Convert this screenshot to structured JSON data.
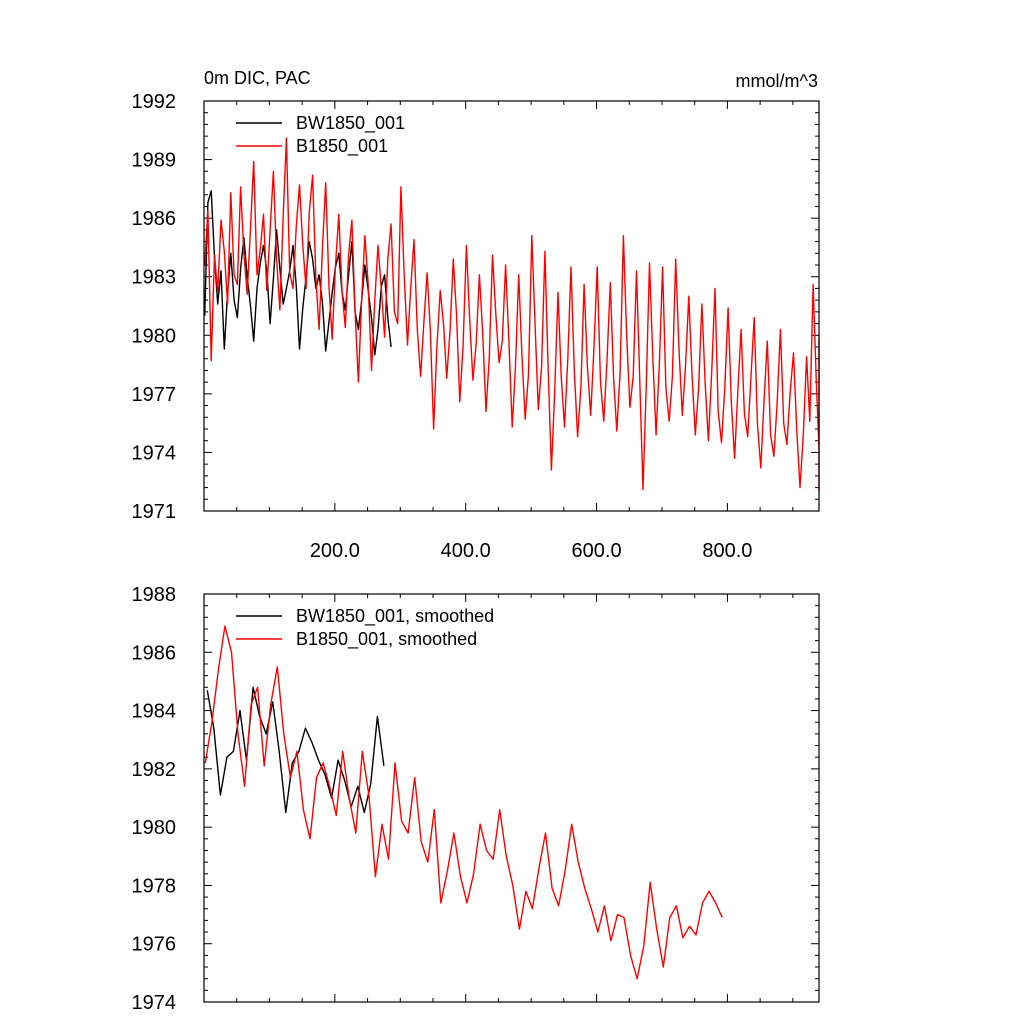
{
  "chart_data": [
    {
      "type": "line",
      "title": "0m DIC, PAC",
      "units": "mmol/m^3",
      "xlim": [
        0,
        940
      ],
      "ylim": [
        1971,
        1992
      ],
      "xticks": [
        200,
        400,
        600,
        800
      ],
      "xtick_labels": [
        "200.0",
        "400.0",
        "600.0",
        "800.0"
      ],
      "yticks": [
        1971,
        1974,
        1977,
        1980,
        1983,
        1986,
        1989,
        1992
      ],
      "ytick_labels": [
        "1971",
        "1974",
        "1977",
        "1980",
        "1983",
        "1986",
        "1989",
        "1992"
      ],
      "legend_position": "top-left",
      "series": [
        {
          "name": "BW1850_001",
          "color": "#000000",
          "x_start": 1,
          "x_step": 5,
          "values": [
            1981.0,
            1986.8,
            1987.4,
            1984.0,
            1981.6,
            1983.3,
            1979.3,
            1982.2,
            1984.2,
            1981.8,
            1980.9,
            1983.4,
            1985.0,
            1983.0,
            1981.5,
            1979.7,
            1982.4,
            1983.7,
            1984.6,
            1983.3,
            1980.6,
            1982.9,
            1985.4,
            1983.4,
            1981.6,
            1982.4,
            1983.3,
            1984.6,
            1982.5,
            1979.3,
            1981.4,
            1983.0,
            1984.8,
            1983.9,
            1982.4,
            1983.1,
            1981.7,
            1979.2,
            1980.7,
            1982.2,
            1983.5,
            1984.2,
            1982.2,
            1981.3,
            1983.1,
            1984.8,
            1981.2,
            1980.3,
            1981.8,
            1983.6,
            1982.3,
            1980.9,
            1979.0,
            1980.3,
            1982.5,
            1983.1,
            1980.9,
            1979.4
          ]
        },
        {
          "name": "B1850_001",
          "color": "#ff0000",
          "x_start": 1,
          "x_step": 5,
          "values": [
            1983.6,
            1986.4,
            1978.7,
            1984.1,
            1982.2,
            1985.9,
            1984.3,
            1981.6,
            1987.3,
            1983.1,
            1982.6,
            1987.6,
            1984.2,
            1982.1,
            1985.5,
            1988.9,
            1983.1,
            1984.4,
            1986.2,
            1982.3,
            1985.4,
            1988.4,
            1983.9,
            1981.3,
            1986.1,
            1990.1,
            1983.2,
            1982.4,
            1985.6,
            1987.7,
            1984.6,
            1982.4,
            1986.3,
            1988.2,
            1982.9,
            1980.3,
            1984.4,
            1987.8,
            1982.5,
            1979.8,
            1983.6,
            1986.2,
            1982.3,
            1980.4,
            1984.1,
            1985.9,
            1981.2,
            1977.6,
            1981.9,
            1985.1,
            1982.6,
            1978.2,
            1981.8,
            1984.6,
            1982.4,
            1979.9,
            1983.9,
            1985.7,
            1981.2,
            1980.6,
            1987.6,
            1983.1,
            1979.5,
            1982.4,
            1984.9,
            1980.3,
            1977.9,
            1980.6,
            1983.2,
            1980.2,
            1975.2,
            1979.4,
            1982.3,
            1980.6,
            1977.8,
            1980.2,
            1983.9,
            1981.1,
            1976.6,
            1979.5,
            1984.6,
            1980.9,
            1977.7,
            1979.6,
            1983.1,
            1980.1,
            1976.1,
            1978.9,
            1984.1,
            1981.1,
            1978.6,
            1979.7,
            1983.6,
            1979.7,
            1975.3,
            1978.3,
            1983.1,
            1978.9,
            1975.7,
            1978.0,
            1985.1,
            1980.5,
            1976.2,
            1978.4,
            1984.3,
            1978.4,
            1973.1,
            1977.1,
            1982.2,
            1977.9,
            1975.3,
            1978.8,
            1983.5,
            1978.2,
            1974.8,
            1977.3,
            1982.6,
            1978.4,
            1975.9,
            1979.3,
            1983.5,
            1977.6,
            1975.6,
            1978.7,
            1982.7,
            1977.8,
            1975.1,
            1978.1,
            1985.1,
            1980.1,
            1976.3,
            1977.9,
            1983.3,
            1977.8,
            1972.1,
            1977.5,
            1983.7,
            1978.9,
            1974.9,
            1978.6,
            1983.5,
            1977.3,
            1975.6,
            1977.9,
            1983.9,
            1979.3,
            1975.9,
            1978.4,
            1982.0,
            1977.9,
            1974.9,
            1977.3,
            1981.6,
            1977.5,
            1974.6,
            1978.1,
            1982.4,
            1976.1,
            1974.5,
            1977.3,
            1981.4,
            1976.6,
            1973.7,
            1977.2,
            1980.3,
            1976.0,
            1974.8,
            1977.9,
            1980.9,
            1975.4,
            1973.2,
            1976.6,
            1979.7,
            1974.9,
            1973.8,
            1976.5,
            1980.3,
            1975.5,
            1974.4,
            1977.1,
            1979.1,
            1975.1,
            1972.2,
            1974.9,
            1978.9,
            1975.6,
            1982.6,
            1977.5,
            1974.2,
            1973.7,
            1976.9,
            1978.6,
            1975.3,
            1974.1,
            1977.4,
            1979.7,
            1975.6,
            1972.0,
            1975.1,
            1978.8,
            1977.9,
            1974.3,
            1975.9,
            1979.4,
            1976.1,
            1973.4,
            1976.8,
            1978.6,
            1974.9,
            1973.2,
            1977.6,
            1979.2,
            1976.2,
            1974.6,
            1977.8,
            1979.0,
            1976.1,
            1975.6,
            1978.4,
            1979.8,
            1976.8,
            1974.0
          ]
        }
      ]
    },
    {
      "type": "line",
      "title": "",
      "units": "",
      "xlim": [
        0,
        940
      ],
      "ylim": [
        1974,
        1988
      ],
      "xticks": [
        200,
        400,
        600,
        800
      ],
      "xtick_labels": [],
      "yticks": [
        1974,
        1976,
        1978,
        1980,
        1982,
        1984,
        1986,
        1988
      ],
      "ytick_labels": [
        "1974",
        "1976",
        "1978",
        "1980",
        "1982",
        "1984",
        "1986",
        "1988"
      ],
      "legend_position": "top-left",
      "series": [
        {
          "name": "BW1850_001, smoothed",
          "color": "#000000",
          "x_start": 5,
          "x_step": 10,
          "values": [
            1984.7,
            1983.4,
            1981.1,
            1982.4,
            1982.6,
            1984.0,
            1982.3,
            1984.8,
            1983.8,
            1983.2,
            1984.3,
            1982.6,
            1980.5,
            1982.2,
            1982.6,
            1983.4,
            1982.9,
            1982.3,
            1981.8,
            1981.0,
            1982.3,
            1981.6,
            1980.7,
            1981.4,
            1980.5,
            1981.5,
            1983.8,
            1982.1
          ]
        },
        {
          "name": "B1850_001, smoothed",
          "color": "#ff0000",
          "x_start": 2,
          "x_step": 10,
          "values": [
            1982.2,
            1983.6,
            1985.4,
            1986.9,
            1986.0,
            1983.2,
            1981.4,
            1984.2,
            1984.8,
            1982.1,
            1984.2,
            1985.5,
            1983.2,
            1981.7,
            1982.6,
            1980.6,
            1979.6,
            1981.7,
            1982.2,
            1981.4,
            1980.4,
            1982.6,
            1981.0,
            1979.8,
            1982.6,
            1981.1,
            1978.3,
            1980.1,
            1978.9,
            1982.2,
            1980.2,
            1979.8,
            1981.7,
            1979.5,
            1978.8,
            1980.6,
            1977.4,
            1978.5,
            1979.8,
            1978.3,
            1977.4,
            1978.4,
            1980.1,
            1979.2,
            1978.9,
            1980.6,
            1979.0,
            1978.0,
            1976.5,
            1977.8,
            1977.2,
            1978.6,
            1979.8,
            1977.9,
            1977.3,
            1978.5,
            1980.1,
            1978.8,
            1977.9,
            1977.2,
            1976.4,
            1977.3,
            1976.1,
            1977.0,
            1976.9,
            1975.6,
            1974.8,
            1975.9,
            1978.1,
            1976.5,
            1975.2,
            1976.9,
            1977.3,
            1976.2,
            1976.6,
            1976.3,
            1977.4,
            1977.8,
            1977.4,
            1976.9
          ]
        }
      ]
    }
  ]
}
